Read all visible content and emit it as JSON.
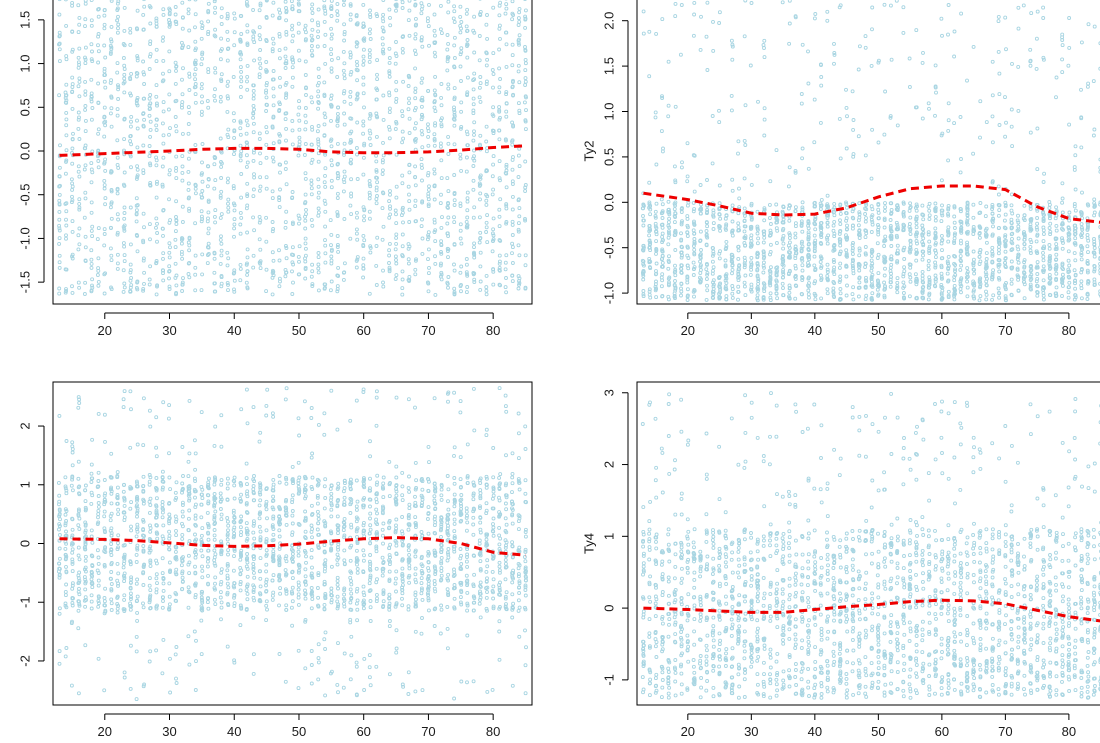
{
  "figure": {
    "caption": ""
  },
  "colors": {
    "points": "#a8d5e2",
    "smoother": "#ee0000",
    "axis": "#000000",
    "background": "#ffffff"
  },
  "chart_data": [
    {
      "type": "scatter",
      "panel": "top-left",
      "title": "",
      "xlabel": "",
      "ylabel": "",
      "xlim": [
        12,
        86
      ],
      "ylim": [
        -1.75,
        1.75
      ],
      "xticks": [
        20,
        30,
        40,
        50,
        60,
        70,
        80
      ],
      "yticks": [
        -1.5,
        -1.0,
        -0.5,
        0.0,
        0.5,
        1.0,
        1.5
      ],
      "ytick_labels": [
        "-1.5",
        "-1.0",
        "-0.5",
        "0.0",
        "0.5",
        "1.0",
        "1.5"
      ],
      "points_distribution": {
        "x_range": [
          13,
          85
        ],
        "y_range": [
          -1.65,
          1.75
        ],
        "dense_band": null,
        "description": "Dense vertical columns of points at integer ages spanning the full y range"
      },
      "smoother": {
        "x": [
          13,
          20,
          30,
          35,
          40,
          45,
          50,
          55,
          60,
          65,
          70,
          75,
          80,
          85
        ],
        "y": [
          -0.05,
          -0.03,
          0.0,
          0.02,
          0.03,
          0.03,
          0.02,
          -0.01,
          -0.02,
          -0.02,
          -0.01,
          0.01,
          0.04,
          0.06
        ]
      }
    },
    {
      "type": "scatter",
      "panel": "top-right",
      "title": "",
      "xlabel": "",
      "ylabel": "Ty2",
      "xlim": [
        12,
        86
      ],
      "ylim": [
        -1.12,
        2.25
      ],
      "xticks": [
        20,
        30,
        40,
        50,
        60,
        70,
        80
      ],
      "yticks": [
        -1.0,
        -0.5,
        0.0,
        0.5,
        1.0,
        1.5,
        2.0
      ],
      "ytick_labels": [
        "-1.0",
        "-0.5",
        "0.0",
        "0.5",
        "1.0",
        "1.5",
        "2.0"
      ],
      "points_distribution": {
        "x_range": [
          13,
          85
        ],
        "y_range": [
          -1.08,
          2.25
        ],
        "dense_band": [
          -1.08,
          0.0
        ],
        "description": "Points dense below 0, sparser toward 2.0"
      },
      "smoother": {
        "x": [
          13,
          20,
          25,
          30,
          35,
          40,
          45,
          50,
          55,
          60,
          65,
          70,
          75,
          80,
          85
        ],
        "y": [
          0.1,
          0.03,
          -0.04,
          -0.12,
          -0.14,
          -0.13,
          -0.06,
          0.06,
          0.15,
          0.18,
          0.18,
          0.14,
          -0.05,
          -0.18,
          -0.22
        ]
      }
    },
    {
      "type": "scatter",
      "panel": "bottom-left",
      "title": "",
      "xlabel": "",
      "ylabel": "",
      "xlim": [
        12,
        86
      ],
      "ylim": [
        -2.75,
        2.75
      ],
      "xticks": [
        20,
        30,
        40,
        50,
        60,
        70,
        80
      ],
      "yticks": [
        -2,
        -1,
        0,
        1,
        2
      ],
      "ytick_labels": [
        "-2",
        "-1",
        "0",
        "1",
        "2"
      ],
      "points_distribution": {
        "x_range": [
          13,
          85
        ],
        "y_range": [
          -2.65,
          2.65
        ],
        "dense_band": [
          -1.15,
          1.15
        ],
        "description": "Dense band between -1.15 and 1.15, sparse scattered points outside"
      },
      "smoother": {
        "x": [
          13,
          20,
          25,
          30,
          35,
          40,
          45,
          50,
          55,
          60,
          65,
          70,
          75,
          80,
          85
        ],
        "y": [
          0.08,
          0.07,
          0.05,
          0.01,
          -0.03,
          -0.05,
          -0.04,
          -0.01,
          0.04,
          0.08,
          0.1,
          0.08,
          0.0,
          -0.15,
          -0.2
        ]
      }
    },
    {
      "type": "scatter",
      "panel": "bottom-right",
      "title": "",
      "xlabel": "",
      "ylabel": "Ty4",
      "xlim": [
        12,
        86
      ],
      "ylim": [
        -1.35,
        3.15
      ],
      "xticks": [
        20,
        30,
        40,
        50,
        60,
        70,
        80
      ],
      "yticks": [
        -1,
        0,
        1,
        2,
        3
      ],
      "ytick_labels": [
        "-1",
        "0",
        "1",
        "2",
        "3"
      ],
      "points_distribution": {
        "x_range": [
          13,
          85
        ],
        "y_range": [
          -1.25,
          3.0
        ],
        "dense_band": [
          -1.25,
          1.1
        ],
        "description": "Dense below 1.1, sparse scattered points above up to 3"
      },
      "smoother": {
        "x": [
          13,
          20,
          25,
          30,
          35,
          40,
          45,
          50,
          55,
          60,
          65,
          70,
          75,
          80,
          85
        ],
        "y": [
          0.0,
          -0.02,
          -0.04,
          -0.06,
          -0.06,
          -0.02,
          0.02,
          0.05,
          0.09,
          0.11,
          0.1,
          0.06,
          -0.03,
          -0.12,
          -0.18
        ]
      }
    }
  ]
}
